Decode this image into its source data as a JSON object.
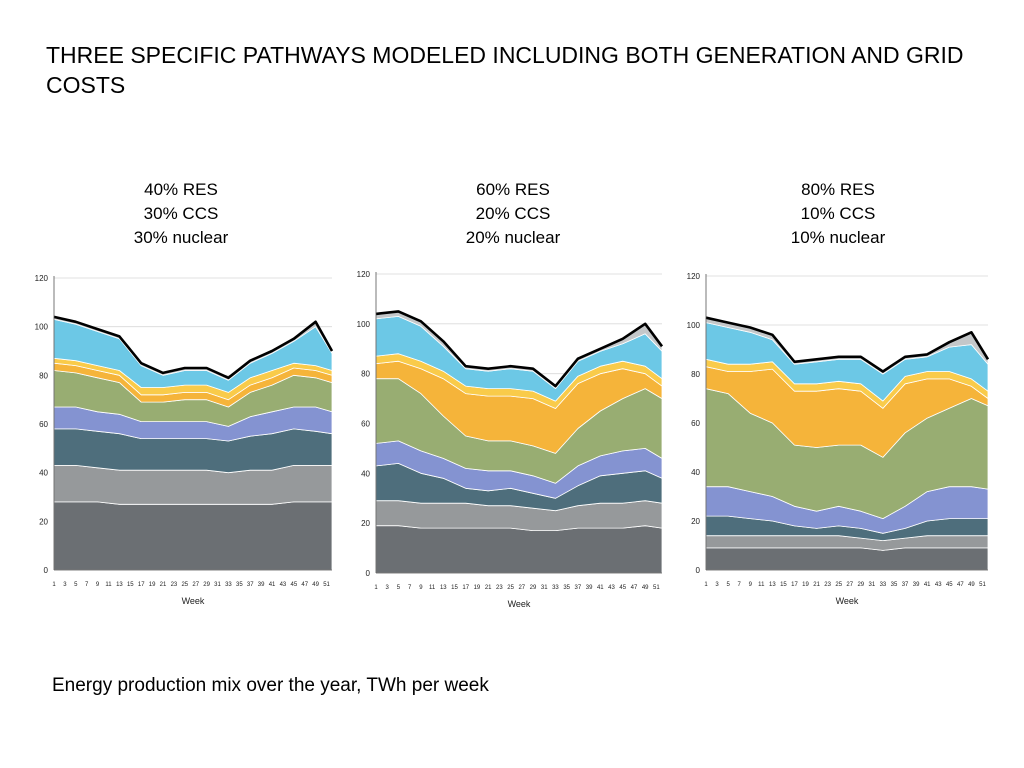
{
  "slide": {
    "title": "THREE SPECIFIC PATHWAYS MODELED INCLUDING BOTH GENERATION AND GRID COSTS",
    "caption": "Energy production mix over the year, TWh per week"
  },
  "colors": {
    "base_dark": "#6b6f73",
    "base_light": "#96999b",
    "teal": "#4e6e7c",
    "blue_violet": "#8493d1",
    "green": "#98ad72",
    "orange": "#f5b43a",
    "amber": "#f9cb4a",
    "sky": "#6cc8e6",
    "silver": "#c4c7c9",
    "total_line": "#000000"
  },
  "chart_data": [
    {
      "type": "area",
      "stacked": true,
      "labels": [
        "40% RES",
        "30% CCS",
        "30% nuclear"
      ],
      "xlabel": "Week",
      "ylabel": "",
      "ylim": [
        0,
        120
      ],
      "yticks": [
        0,
        20,
        40,
        60,
        80,
        100,
        120
      ],
      "x_ticks": [
        1,
        3,
        5,
        7,
        9,
        11,
        13,
        15,
        17,
        19,
        21,
        23,
        25,
        27,
        29,
        31,
        33,
        35,
        37,
        39,
        41,
        43,
        45,
        47,
        49,
        51
      ],
      "x": [
        1,
        5,
        9,
        13,
        17,
        21,
        25,
        29,
        33,
        37,
        41,
        45,
        49,
        52
      ],
      "series": [
        {
          "color": "base_dark",
          "values": [
            28,
            28,
            28,
            27,
            27,
            27,
            27,
            27,
            27,
            27,
            27,
            28,
            28,
            28
          ]
        },
        {
          "color": "base_light",
          "values": [
            15,
            15,
            14,
            14,
            14,
            14,
            14,
            14,
            13,
            14,
            14,
            15,
            15,
            15
          ]
        },
        {
          "color": "teal",
          "values": [
            15,
            15,
            15,
            15,
            13,
            13,
            13,
            13,
            13,
            14,
            15,
            15,
            14,
            13
          ]
        },
        {
          "color": "blue_violet",
          "values": [
            9,
            9,
            8,
            8,
            7,
            7,
            7,
            7,
            6,
            8,
            9,
            9,
            10,
            9
          ]
        },
        {
          "color": "green",
          "values": [
            15,
            14,
            14,
            13,
            8,
            8,
            9,
            9,
            8,
            10,
            11,
            13,
            12,
            12
          ]
        },
        {
          "color": "orange",
          "values": [
            3,
            3,
            3,
            3,
            3,
            3,
            3,
            3,
            3,
            3,
            3,
            3,
            3,
            3
          ]
        },
        {
          "color": "amber",
          "values": [
            2,
            2,
            2,
            2,
            3,
            3,
            3,
            3,
            3,
            3,
            3,
            2,
            2,
            2
          ]
        },
        {
          "color": "sky",
          "values": [
            16,
            15,
            14,
            13,
            9,
            5,
            6,
            6,
            5,
            6,
            7,
            9,
            16,
            7
          ]
        },
        {
          "color": "silver",
          "values": [
            1,
            1,
            1,
            1,
            1,
            1,
            1,
            1,
            1,
            1,
            1,
            1,
            2,
            1
          ]
        }
      ]
    },
    {
      "type": "area",
      "stacked": true,
      "labels": [
        "60% RES",
        "20% CCS",
        "20% nuclear"
      ],
      "xlabel": "Week",
      "ylabel": "",
      "ylim": [
        0,
        120
      ],
      "yticks": [
        0,
        20,
        40,
        60,
        80,
        100,
        120
      ],
      "x_ticks": [
        1,
        3,
        5,
        7,
        9,
        11,
        13,
        15,
        17,
        19,
        21,
        23,
        25,
        27,
        29,
        31,
        33,
        35,
        37,
        39,
        41,
        43,
        45,
        47,
        49,
        51
      ],
      "x": [
        1,
        5,
        9,
        13,
        17,
        21,
        25,
        29,
        33,
        37,
        41,
        45,
        49,
        52
      ],
      "series": [
        {
          "color": "base_dark",
          "values": [
            19,
            19,
            18,
            18,
            18,
            18,
            18,
            17,
            17,
            18,
            18,
            18,
            19,
            18
          ]
        },
        {
          "color": "base_light",
          "values": [
            10,
            10,
            10,
            10,
            10,
            9,
            9,
            9,
            8,
            9,
            10,
            10,
            10,
            10
          ]
        },
        {
          "color": "teal",
          "values": [
            14,
            15,
            12,
            10,
            6,
            6,
            7,
            6,
            5,
            8,
            11,
            12,
            12,
            10
          ]
        },
        {
          "color": "blue_violet",
          "values": [
            9,
            9,
            9,
            8,
            8,
            8,
            7,
            7,
            6,
            8,
            8,
            9,
            9,
            8
          ]
        },
        {
          "color": "green",
          "values": [
            26,
            25,
            23,
            17,
            13,
            12,
            12,
            12,
            12,
            15,
            18,
            21,
            24,
            24
          ]
        },
        {
          "color": "orange",
          "values": [
            6,
            7,
            10,
            15,
            17,
            18,
            18,
            19,
            18,
            18,
            15,
            12,
            6,
            5
          ]
        },
        {
          "color": "amber",
          "values": [
            3,
            3,
            3,
            3,
            3,
            3,
            3,
            3,
            3,
            3,
            3,
            3,
            3,
            3
          ]
        },
        {
          "color": "sky",
          "values": [
            15,
            15,
            14,
            10,
            7,
            7,
            8,
            8,
            5,
            6,
            6,
            7,
            13,
            11
          ]
        },
        {
          "color": "silver",
          "values": [
            2,
            2,
            2,
            2,
            1,
            1,
            1,
            1,
            1,
            1,
            1,
            2,
            4,
            2
          ]
        }
      ]
    },
    {
      "type": "area",
      "stacked": true,
      "labels": [
        "80% RES",
        "10% CCS",
        "10% nuclear"
      ],
      "xlabel": "Week",
      "ylabel": "",
      "ylim": [
        0,
        120
      ],
      "yticks": [
        0,
        20,
        40,
        60,
        80,
        100,
        120
      ],
      "x_ticks": [
        1,
        3,
        5,
        7,
        9,
        11,
        13,
        15,
        17,
        19,
        21,
        23,
        25,
        27,
        29,
        31,
        33,
        35,
        37,
        39,
        41,
        43,
        45,
        47,
        49,
        51
      ],
      "x": [
        1,
        5,
        9,
        13,
        17,
        21,
        25,
        29,
        33,
        37,
        41,
        45,
        49,
        52
      ],
      "series": [
        {
          "color": "base_dark",
          "values": [
            9,
            9,
            9,
            9,
            9,
            9,
            9,
            9,
            8,
            9,
            9,
            9,
            9,
            9
          ]
        },
        {
          "color": "base_light",
          "values": [
            5,
            5,
            5,
            5,
            5,
            5,
            5,
            4,
            4,
            4,
            5,
            5,
            5,
            5
          ]
        },
        {
          "color": "teal",
          "values": [
            8,
            8,
            7,
            6,
            4,
            3,
            4,
            4,
            3,
            4,
            6,
            7,
            7,
            7
          ]
        },
        {
          "color": "blue_violet",
          "values": [
            12,
            12,
            11,
            10,
            8,
            7,
            8,
            7,
            6,
            9,
            12,
            13,
            13,
            12
          ]
        },
        {
          "color": "green",
          "values": [
            40,
            38,
            32,
            30,
            25,
            26,
            25,
            27,
            25,
            30,
            30,
            32,
            36,
            34
          ]
        },
        {
          "color": "orange",
          "values": [
            9,
            9,
            17,
            22,
            22,
            23,
            23,
            22,
            20,
            20,
            16,
            12,
            5,
            3
          ]
        },
        {
          "color": "amber",
          "values": [
            3,
            3,
            3,
            3,
            3,
            3,
            3,
            3,
            3,
            3,
            3,
            3,
            3,
            3
          ]
        },
        {
          "color": "sky",
          "values": [
            15,
            15,
            13,
            9,
            8,
            9,
            9,
            10,
            11,
            7,
            6,
            10,
            14,
            11
          ]
        },
        {
          "color": "silver",
          "values": [
            2,
            2,
            2,
            2,
            1,
            1,
            1,
            1,
            1,
            1,
            1,
            2,
            5,
            2
          ]
        }
      ]
    }
  ]
}
